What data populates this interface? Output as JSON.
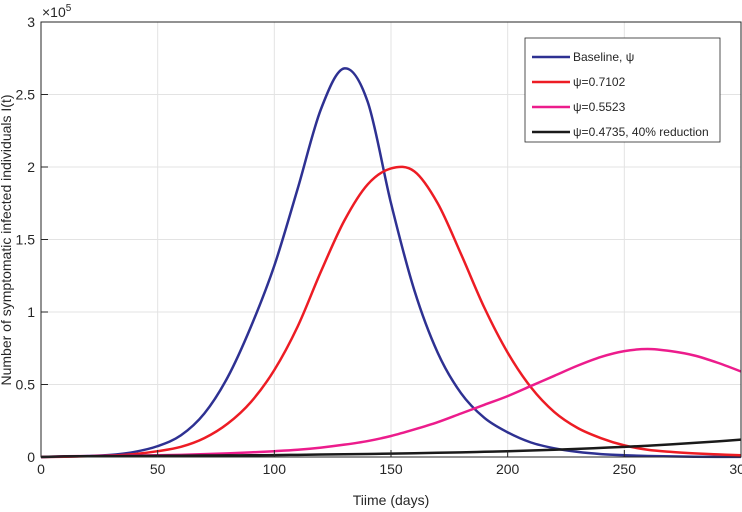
{
  "chart_data": {
    "type": "line",
    "title": "",
    "xlabel": "Tiime (days)",
    "ylabel": "Number of symptomatic infected individuals I(t)",
    "y_multiplier_label": "×10",
    "y_multiplier_exp": "5",
    "xlim": [
      0,
      300
    ],
    "ylim": [
      0,
      3
    ],
    "xticks": [
      0,
      50,
      100,
      150,
      200,
      250,
      300
    ],
    "yticks": [
      0,
      0.5,
      1,
      1.5,
      2,
      2.5,
      3
    ],
    "ytick_labels": [
      "0",
      "0.5",
      "1",
      "1.5",
      "2",
      "2.5",
      "3"
    ],
    "grid": true,
    "legend_position": "top-right",
    "x": [
      0,
      10,
      20,
      30,
      40,
      50,
      60,
      70,
      80,
      90,
      100,
      110,
      120,
      130,
      140,
      150,
      160,
      170,
      180,
      190,
      200,
      210,
      220,
      230,
      240,
      250,
      260,
      270,
      280,
      290,
      300
    ],
    "series": [
      {
        "name": "Baseline, ψ",
        "color": "#2e3192",
        "values": [
          0.0,
          0.003,
          0.007,
          0.015,
          0.035,
          0.075,
          0.15,
          0.3,
          0.55,
          0.9,
          1.32,
          1.85,
          2.4,
          2.68,
          2.45,
          1.75,
          1.15,
          0.72,
          0.44,
          0.27,
          0.17,
          0.1,
          0.06,
          0.035,
          0.02,
          0.012,
          0.007,
          0.004,
          0.002,
          0.001,
          0.001
        ]
      },
      {
        "name": "ψ=0.7102",
        "color": "#ed1c24",
        "values": [
          0.0,
          0.002,
          0.005,
          0.01,
          0.02,
          0.04,
          0.07,
          0.13,
          0.23,
          0.38,
          0.6,
          0.9,
          1.28,
          1.63,
          1.88,
          1.99,
          1.97,
          1.75,
          1.4,
          1.03,
          0.72,
          0.48,
          0.31,
          0.2,
          0.13,
          0.08,
          0.05,
          0.035,
          0.025,
          0.018,
          0.012
        ]
      },
      {
        "name": "ψ=0.5523",
        "color": "#ec1c8c",
        "values": [
          0.0,
          0.005,
          0.006,
          0.008,
          0.01,
          0.012,
          0.015,
          0.02,
          0.025,
          0.032,
          0.04,
          0.05,
          0.065,
          0.085,
          0.11,
          0.145,
          0.19,
          0.24,
          0.3,
          0.36,
          0.42,
          0.49,
          0.56,
          0.63,
          0.69,
          0.73,
          0.745,
          0.73,
          0.7,
          0.65,
          0.59
        ]
      },
      {
        "name": "ψ=0.4735, 40% reduction",
        "color": "#1a1a1a",
        "values": [
          0.0,
          0.004,
          0.005,
          0.006,
          0.007,
          0.008,
          0.009,
          0.01,
          0.011,
          0.012,
          0.013,
          0.015,
          0.017,
          0.019,
          0.021,
          0.023,
          0.026,
          0.029,
          0.032,
          0.036,
          0.04,
          0.045,
          0.05,
          0.056,
          0.063,
          0.07,
          0.078,
          0.087,
          0.097,
          0.108,
          0.12
        ]
      }
    ]
  }
}
